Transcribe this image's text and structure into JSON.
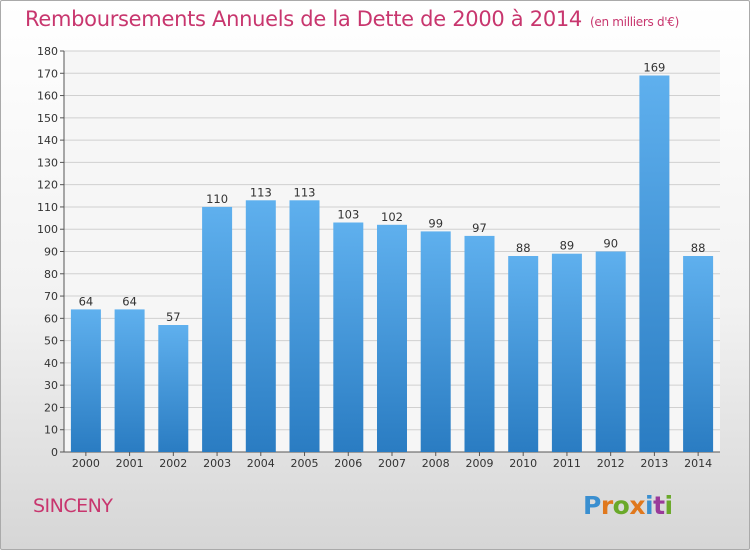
{
  "title": "Remboursements Annuels de la Dette de 2000 à 2014",
  "title_unit": "(en milliers d'€)",
  "commune": "SINCENY",
  "logo": {
    "text": "Proxiti",
    "letter_colors": [
      "#3a8fd0",
      "#e0781d",
      "#6aa92a",
      "#e0781d",
      "#3a8fd0",
      "#9a3a9a",
      "#6aa92a"
    ]
  },
  "colors": {
    "title": "#c8366e",
    "bar_top": "#5fb0ee",
    "bar_bottom": "#2a7cc2",
    "grid": "#d0d0d0",
    "axis": "#555555"
  },
  "chart_data": {
    "type": "bar",
    "categories": [
      "2000",
      "2001",
      "2002",
      "2003",
      "2004",
      "2005",
      "2006",
      "2007",
      "2008",
      "2009",
      "2010",
      "2011",
      "2012",
      "2013",
      "2014"
    ],
    "values": [
      64,
      64,
      57,
      110,
      113,
      113,
      103,
      102,
      99,
      97,
      88,
      89,
      90,
      169,
      88
    ],
    "ylim": [
      0,
      180
    ],
    "yticks": [
      0,
      10,
      20,
      30,
      40,
      50,
      60,
      70,
      80,
      90,
      100,
      110,
      120,
      130,
      140,
      150,
      160,
      170,
      180
    ],
    "grid": true,
    "data_labels": true
  }
}
